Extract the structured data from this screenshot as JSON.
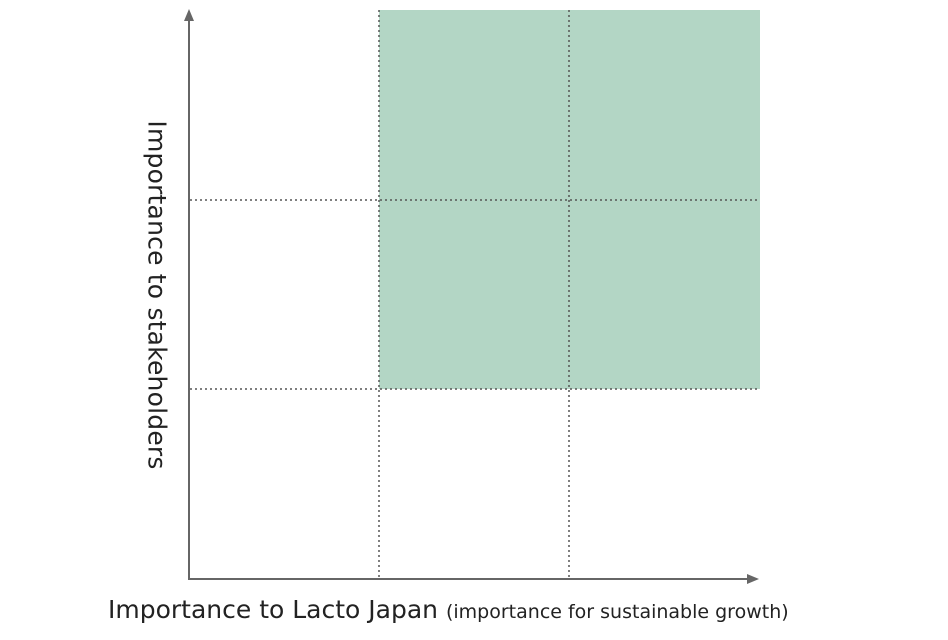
{
  "axes": {
    "y_label": "Importance to stakeholders",
    "x_label_main": "Importance to Lacto Japan",
    "x_label_sub": "(importance for sustainable growth)"
  },
  "matrix": {
    "grid": "3x3",
    "highlighted_region": "upper-right 2x2 cells",
    "colors": {
      "highlight": "#b3d6c5",
      "axis": "#666666",
      "gridline": "#555555"
    }
  }
}
